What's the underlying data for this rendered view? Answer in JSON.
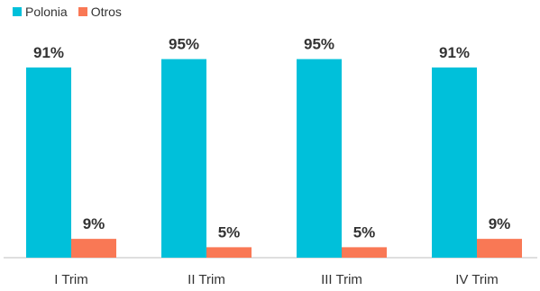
{
  "chart_data": {
    "type": "bar",
    "categories": [
      "I Trim",
      "II Trim",
      "III Trim",
      "IV Trim"
    ],
    "series": [
      {
        "name": "Polonia",
        "values": [
          91,
          95,
          95,
          91
        ],
        "labels": [
          "91%",
          "95%",
          "95%",
          "91%"
        ],
        "color": "#00c0da"
      },
      {
        "name": "Otros",
        "values": [
          9,
          5,
          5,
          9
        ],
        "labels": [
          "9%",
          "5%",
          "5%",
          "9%"
        ],
        "color": "#f97855"
      }
    ],
    "ylim": [
      0,
      100
    ],
    "grid": false,
    "legend_position": "top-left"
  }
}
